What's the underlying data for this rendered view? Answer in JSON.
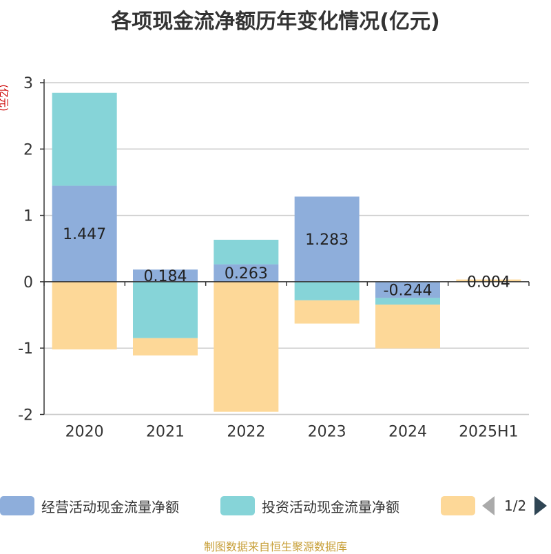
{
  "chart_data": {
    "type": "bar",
    "stacked": true,
    "title": "各项现金流净额历年变化情况(亿元)",
    "ylabel": "(亿元)",
    "categories": [
      "2020",
      "2021",
      "2022",
      "2023",
      "2024",
      "2025H1"
    ],
    "ylim": [
      -2,
      3
    ],
    "yticks": [
      3,
      2,
      1,
      0,
      -1,
      -2
    ],
    "grid": true,
    "legend_position": "bottom",
    "series": [
      {
        "name": "经营活动现金流量净额",
        "color": "#8eaedb",
        "values": [
          1.447,
          0.184,
          0.263,
          1.283,
          -0.244,
          0.004
        ],
        "labels": [
          "1.447",
          "0.184",
          "0.263",
          "1.283",
          "-0.244",
          "0.004"
        ]
      },
      {
        "name": "投资活动现金流量净额",
        "color": "#86d4d8",
        "values": [
          1.4,
          -0.85,
          0.37,
          -0.28,
          -0.1,
          0.0
        ]
      },
      {
        "name": "",
        "color": "#fdd898",
        "values": [
          -1.02,
          -0.26,
          -1.96,
          -0.35,
          -0.66,
          0.03
        ]
      }
    ]
  },
  "legend": {
    "page_indicator": "1/2"
  },
  "source": "制图数据来自恒生聚源数据库"
}
